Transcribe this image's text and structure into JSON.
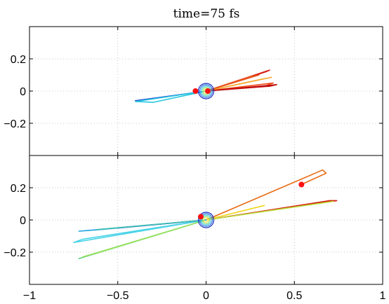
{
  "chart_data": {
    "type": "line",
    "title": "time=75 fs",
    "panels": [
      {
        "name": "top",
        "xlim": [
          -1,
          1
        ],
        "ylim": [
          -0.4,
          0.4
        ],
        "yticks": [
          -0.2,
          0,
          0.2
        ],
        "ytick_labels": [
          "−0.2",
          "0",
          "0.2"
        ],
        "show_xtick_labels": false,
        "grid": true,
        "trajectories": [
          {
            "color": "#1f3fd6",
            "points": [
              [
                0,
                0
              ],
              [
                -0.4,
                -0.06
              ],
              [
                0,
                0
              ]
            ]
          },
          {
            "color": "#27c7e0",
            "points": [
              [
                0,
                0
              ],
              [
                -0.4,
                -0.065
              ],
              [
                -0.3,
                -0.07
              ],
              [
                0,
                0
              ]
            ]
          },
          {
            "color": "#d81d10",
            "points": [
              [
                0,
                0
              ],
              [
                0.34,
                0.12
              ],
              [
                0.36,
                0.13
              ],
              [
                0,
                0
              ]
            ]
          },
          {
            "color": "#ef4a17",
            "points": [
              [
                0,
                0
              ],
              [
                0.38,
                0.05
              ],
              [
                0.33,
                0.03
              ],
              [
                0,
                0
              ]
            ]
          },
          {
            "color": "#f5a623",
            "points": [
              [
                0,
                0
              ],
              [
                0.37,
                0.085
              ],
              [
                0.3,
                0.07
              ],
              [
                0,
                0
              ]
            ]
          },
          {
            "color": "#c20d0d",
            "points": [
              [
                0,
                0
              ],
              [
                0.4,
                0.04
              ],
              [
                0.36,
                0.03
              ],
              [
                0,
                0
              ]
            ]
          },
          {
            "color": "#e8541b",
            "points": [
              [
                0,
                0
              ],
              [
                0.3,
                0.1
              ],
              [
                0.25,
                0.09
              ],
              [
                0,
                0
              ]
            ]
          }
        ],
        "markers": [
          {
            "x": -0.06,
            "y": 0.0,
            "color": "#ff1010"
          },
          {
            "x": 0.01,
            "y": 0.0,
            "color": "#ff1010"
          }
        ]
      },
      {
        "name": "bottom",
        "xlim": [
          -1,
          1
        ],
        "ylim": [
          -0.4,
          0.4
        ],
        "yticks": [
          -0.2,
          0,
          0.2
        ],
        "ytick_labels": [
          "−0.2",
          "0",
          "0.2"
        ],
        "xticks": [
          -1,
          -0.5,
          0,
          0.5,
          1
        ],
        "xtick_labels": [
          "−1",
          "−0.5",
          "0",
          "0.5",
          "1"
        ],
        "grid": true,
        "trajectories": [
          {
            "color": "#ea6a10",
            "points": [
              [
                0,
                0
              ],
              [
                0.66,
                0.31
              ],
              [
                0.68,
                0.29
              ],
              [
                0.54,
                0.22
              ]
            ]
          },
          {
            "color": "#d81d10",
            "points": [
              [
                0,
                0
              ],
              [
                0.7,
                0.12
              ],
              [
                0.74,
                0.12
              ],
              [
                0,
                0
              ]
            ]
          },
          {
            "color": "#b8e23a",
            "points": [
              [
                0,
                0
              ],
              [
                0.72,
                0.115
              ],
              [
                0,
                0
              ]
            ]
          },
          {
            "color": "#f2d417",
            "points": [
              [
                0,
                0
              ],
              [
                0.33,
                0.09
              ],
              [
                0,
                0
              ]
            ]
          },
          {
            "color": "#48d4e8",
            "points": [
              [
                0,
                0
              ],
              [
                -0.75,
                -0.14
              ],
              [
                -0.7,
                -0.12
              ],
              [
                0,
                0
              ]
            ]
          },
          {
            "color": "#5fd38a",
            "points": [
              [
                0,
                0
              ],
              [
                -0.72,
                -0.24
              ],
              [
                -0.66,
                -0.22
              ],
              [
                0,
                0
              ]
            ]
          },
          {
            "color": "#96e060",
            "points": [
              [
                0,
                0
              ],
              [
                -0.7,
                -0.23
              ],
              [
                -0.6,
                -0.2
              ],
              [
                0,
                0
              ]
            ]
          },
          {
            "color": "#2ea9e0",
            "points": [
              [
                0,
                0
              ],
              [
                -0.72,
                -0.07
              ],
              [
                -0.6,
                -0.06
              ],
              [
                0,
                0
              ]
            ]
          },
          {
            "color": "#1f3fd6",
            "points": [
              [
                0,
                0
              ],
              [
                -0.5,
                -0.05
              ],
              [
                0,
                0
              ]
            ]
          },
          {
            "color": "#3fc0b0",
            "points": [
              [
                0,
                0
              ],
              [
                -0.62,
                -0.06
              ],
              [
                -0.52,
                -0.05
              ],
              [
                0,
                0
              ]
            ]
          }
        ],
        "markers": [
          {
            "x": 0.54,
            "y": 0.22,
            "color": "#ff1010"
          },
          {
            "x": -0.03,
            "y": 0.02,
            "color": "#ff1010"
          }
        ]
      }
    ]
  }
}
